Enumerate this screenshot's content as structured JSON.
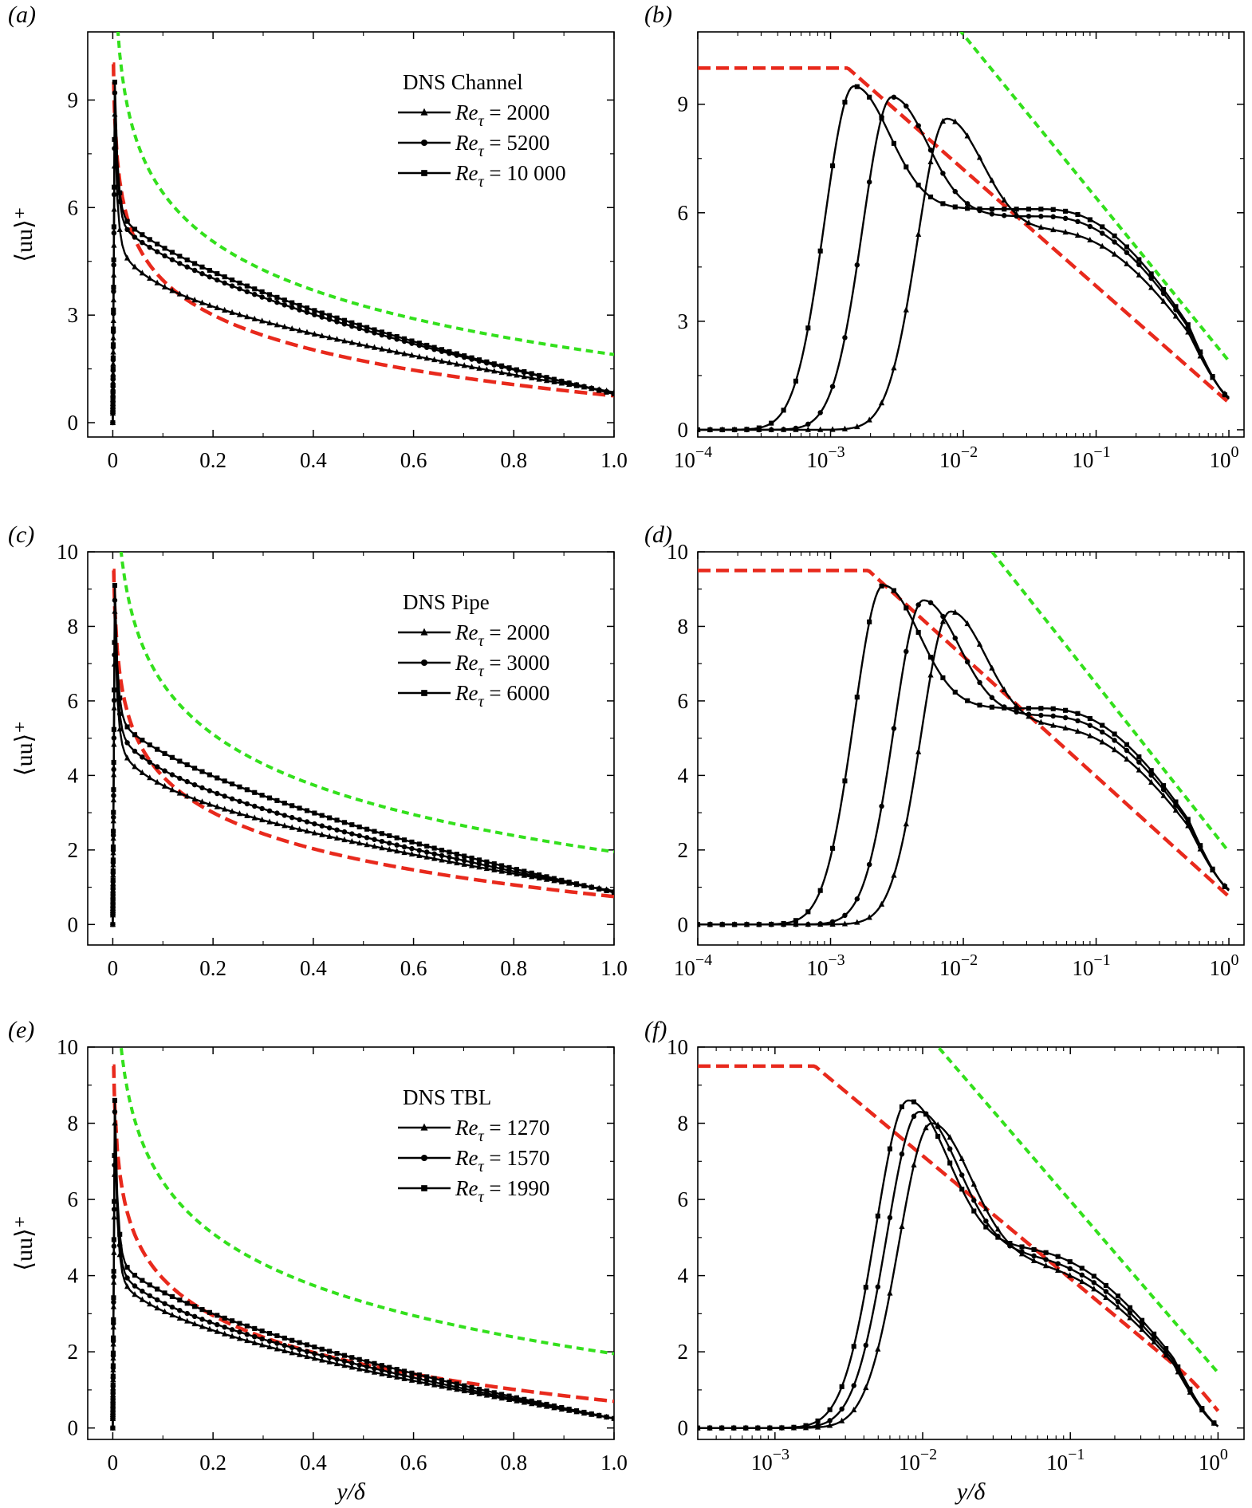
{
  "figure": {
    "xlabel": "y/δ",
    "ylabel": "⟨uu⟩⁺",
    "legend_prefix": "Re",
    "legend_sub": "τ",
    "colors": {
      "data": "#000000",
      "red_model": "#e8291c",
      "green_model": "#33e01c"
    }
  },
  "chart_data": [
    {
      "id": "a",
      "panel_label": "(a)",
      "type": "line",
      "xscale": "linear",
      "xlim": [
        -0.05,
        1.0
      ],
      "ylim": [
        -0.4,
        10.9
      ],
      "xticks": [
        {
          "v": 0,
          "label": "0"
        },
        {
          "v": 0.2,
          "label": "0.2"
        },
        {
          "v": 0.4,
          "label": "0.4"
        },
        {
          "v": 0.6,
          "label": "0.6"
        },
        {
          "v": 0.8,
          "label": "0.8"
        },
        {
          "v": 1.0,
          "label": "1.0"
        }
      ],
      "yticks": [
        {
          "v": 0,
          "label": "0"
        },
        {
          "v": 3,
          "label": "3"
        },
        {
          "v": 6,
          "label": "6"
        },
        {
          "v": 9,
          "label": "9"
        }
      ],
      "legend_title": "DNS Channel",
      "legend_position": "top-right",
      "series": [
        {
          "name": "Re_τ = 2000",
          "label": "= 2000",
          "marker": "triangle",
          "peak": 8.6,
          "plateau": 4.6,
          "outer": 0.85,
          "shoulder": 5.5
        },
        {
          "name": "Re_τ = 5200",
          "label": "= 5200",
          "marker": "circle",
          "peak": 9.2,
          "plateau": 5.9,
          "outer": 0.82,
          "shoulder": 5.9
        },
        {
          "name": "Re_τ = 10 000",
          "label": "= 10 000",
          "marker": "square",
          "peak": 9.5,
          "plateau": 6.2,
          "outer": 0.8,
          "shoulder": 6.1
        }
      ],
      "red_model": {
        "y0": 0.75,
        "slope": 1.4,
        "floor": 0.0,
        "cap": 10.0
      },
      "green_model": {
        "y0": 1.9,
        "slope": 1.96,
        "cap": 10.6
      }
    },
    {
      "id": "b",
      "panel_label": "(b)",
      "type": "line",
      "xscale": "log",
      "xlim": [
        0.0001,
        1.3
      ],
      "ylim": [
        -0.2,
        11.0
      ],
      "xticks": [
        {
          "v": 0.0001,
          "label": "10",
          "exp": "−4"
        },
        {
          "v": 0.001,
          "label": "10",
          "exp": "−3"
        },
        {
          "v": 0.01,
          "label": "10",
          "exp": "−2"
        },
        {
          "v": 0.1,
          "label": "10",
          "exp": "−1"
        },
        {
          "v": 1,
          "label": "10",
          "exp": "0"
        }
      ],
      "yticks": [
        {
          "v": 0,
          "label": "0"
        },
        {
          "v": 3,
          "label": "3"
        },
        {
          "v": 6,
          "label": "6"
        },
        {
          "v": 9,
          "label": "9"
        }
      ],
      "series": [
        {
          "name": "Re_τ = 2000",
          "marker": "triangle",
          "peakX": 0.0075,
          "peak": 8.6,
          "plateau": 4.6,
          "outer": 0.85,
          "shoulder": 5.5
        },
        {
          "name": "Re_τ = 5200",
          "marker": "circle",
          "peakX": 0.0029,
          "peak": 9.2,
          "plateau": 5.9,
          "outer": 0.82,
          "shoulder": 5.9
        },
        {
          "name": "Re_τ = 10 000",
          "marker": "square",
          "peakX": 0.0015,
          "peak": 9.5,
          "plateau": 6.2,
          "outer": 0.8,
          "shoulder": 6.1
        }
      ],
      "red_model": {
        "y0": 0.75,
        "slope": 1.4,
        "floor": 0.0,
        "cap": 10.0
      },
      "green_model": {
        "y0": 1.9,
        "slope": 1.96,
        "cap": 10.6
      }
    },
    {
      "id": "c",
      "panel_label": "(c)",
      "type": "line",
      "xscale": "linear",
      "xlim": [
        -0.05,
        1.0
      ],
      "ylim": [
        -0.55,
        10.0
      ],
      "xticks": [
        {
          "v": 0,
          "label": "0"
        },
        {
          "v": 0.2,
          "label": "0.2"
        },
        {
          "v": 0.4,
          "label": "0.4"
        },
        {
          "v": 0.6,
          "label": "0.6"
        },
        {
          "v": 0.8,
          "label": "0.8"
        },
        {
          "v": 1.0,
          "label": "1.0"
        }
      ],
      "yticks": [
        {
          "v": 0,
          "label": "0"
        },
        {
          "v": 2,
          "label": "2"
        },
        {
          "v": 4,
          "label": "4"
        },
        {
          "v": 6,
          "label": "6"
        },
        {
          "v": 8,
          "label": "8"
        },
        {
          "v": 10,
          "label": "10"
        }
      ],
      "legend_title": "DNS Pipe",
      "legend_position": "top-right",
      "series": [
        {
          "name": "Re_τ = 2000",
          "label": "= 2000",
          "marker": "triangle",
          "peak": 8.4,
          "plateau": 4.5,
          "outer": 0.9,
          "shoulder": 5.3
        },
        {
          "name": "Re_τ = 3000",
          "label": "= 3000",
          "marker": "circle",
          "peak": 8.7,
          "plateau": 5.1,
          "outer": 0.88,
          "shoulder": 5.6
        },
        {
          "name": "Re_τ = 6000",
          "label": "= 6000",
          "marker": "square",
          "peak": 9.1,
          "plateau": 5.8,
          "outer": 0.86,
          "shoulder": 5.8
        }
      ],
      "red_model": {
        "y0": 0.75,
        "slope": 1.4,
        "floor": 0.0,
        "cap": 9.5
      },
      "green_model": {
        "y0": 1.95,
        "slope": 1.96,
        "cap": 9.6
      }
    },
    {
      "id": "d",
      "panel_label": "(d)",
      "type": "line",
      "xscale": "log",
      "xlim": [
        0.0001,
        1.3
      ],
      "ylim": [
        -0.55,
        10.0
      ],
      "xticks": [
        {
          "v": 0.0001,
          "label": "10",
          "exp": "−4"
        },
        {
          "v": 0.001,
          "label": "10",
          "exp": "−3"
        },
        {
          "v": 0.01,
          "label": "10",
          "exp": "−2"
        },
        {
          "v": 0.1,
          "label": "10",
          "exp": "−1"
        },
        {
          "v": 1,
          "label": "10",
          "exp": "0"
        }
      ],
      "yticks": [
        {
          "v": 0,
          "label": "0"
        },
        {
          "v": 2,
          "label": "2"
        },
        {
          "v": 4,
          "label": "4"
        },
        {
          "v": 6,
          "label": "6"
        },
        {
          "v": 8,
          "label": "8"
        },
        {
          "v": 10,
          "label": "10"
        }
      ],
      "series": [
        {
          "name": "Re_τ = 2000",
          "marker": "triangle",
          "peakX": 0.008,
          "peak": 8.4,
          "plateau": 4.5,
          "outer": 0.9,
          "shoulder": 5.3
        },
        {
          "name": "Re_τ = 3000",
          "marker": "circle",
          "peakX": 0.005,
          "peak": 8.7,
          "plateau": 5.1,
          "outer": 0.88,
          "shoulder": 5.6
        },
        {
          "name": "Re_τ = 6000",
          "marker": "square",
          "peakX": 0.0025,
          "peak": 9.1,
          "plateau": 5.8,
          "outer": 0.86,
          "shoulder": 5.8
        }
      ],
      "red_model": {
        "y0": 0.75,
        "slope": 1.4,
        "floor": 0.0,
        "cap": 9.5
      },
      "green_model": {
        "y0": 1.95,
        "slope": 1.96,
        "cap": 9.6
      }
    },
    {
      "id": "e",
      "panel_label": "(e)",
      "type": "line",
      "xscale": "linear",
      "xlim": [
        -0.05,
        1.0
      ],
      "ylim": [
        -0.3,
        10.0
      ],
      "xticks": [
        {
          "v": 0,
          "label": "0"
        },
        {
          "v": 0.2,
          "label": "0.2"
        },
        {
          "v": 0.4,
          "label": "0.4"
        },
        {
          "v": 0.6,
          "label": "0.6"
        },
        {
          "v": 0.8,
          "label": "0.8"
        },
        {
          "v": 1.0,
          "label": "1.0"
        }
      ],
      "yticks": [
        {
          "v": 0,
          "label": "0"
        },
        {
          "v": 2,
          "label": "2"
        },
        {
          "v": 4,
          "label": "4"
        },
        {
          "v": 6,
          "label": "6"
        },
        {
          "v": 8,
          "label": "8"
        },
        {
          "v": 10,
          "label": "10"
        }
      ],
      "legend_title": "DNS TBL",
      "legend_position": "top-right",
      "series": [
        {
          "name": "Re_τ = 1270",
          "label": "= 1270",
          "marker": "triangle",
          "peak": 8.0,
          "plateau": 3.9,
          "outer": 0.25,
          "shoulder": 4.3
        },
        {
          "name": "Re_τ = 1570",
          "label": "= 1570",
          "marker": "circle",
          "peak": 8.3,
          "plateau": 4.2,
          "outer": 0.25,
          "shoulder": 4.5
        },
        {
          "name": "Re_τ = 1990",
          "label": "= 1990",
          "marker": "square",
          "peak": 8.6,
          "plateau": 4.6,
          "outer": 0.25,
          "shoulder": 4.7
        }
      ],
      "red_model": {
        "y0": 0.7,
        "slope": 1.4,
        "floor": 0.0,
        "cap": 9.5
      },
      "green_model": {
        "y0": 1.95,
        "slope": 1.96,
        "cap": 9.8
      }
    },
    {
      "id": "f",
      "panel_label": "(f)",
      "type": "line",
      "xscale": "log",
      "xlim": [
        0.0003,
        1.5
      ],
      "ylim": [
        -0.3,
        10.0
      ],
      "xticks": [
        {
          "v": 0.001,
          "label": "10",
          "exp": "−3"
        },
        {
          "v": 0.01,
          "label": "10",
          "exp": "−2"
        },
        {
          "v": 0.1,
          "label": "10",
          "exp": "−1"
        },
        {
          "v": 1,
          "label": "10",
          "exp": "0"
        }
      ],
      "yticks": [
        {
          "v": 0,
          "label": "0"
        },
        {
          "v": 2,
          "label": "2"
        },
        {
          "v": 4,
          "label": "4"
        },
        {
          "v": 6,
          "label": "6"
        },
        {
          "v": 8,
          "label": "8"
        },
        {
          "v": 10,
          "label": "10"
        }
      ],
      "series": [
        {
          "name": "Re_τ = 1270",
          "marker": "triangle",
          "peakX": 0.0115,
          "peak": 8.0,
          "plateau": 3.9,
          "outer": 0.0,
          "shoulder": 4.3
        },
        {
          "name": "Re_τ = 1570",
          "marker": "circle",
          "peakX": 0.0095,
          "peak": 8.3,
          "plateau": 4.2,
          "outer": 0.0,
          "shoulder": 4.5
        },
        {
          "name": "Re_τ = 1990",
          "marker": "square",
          "peakX": 0.008,
          "peak": 8.6,
          "plateau": 4.6,
          "outer": 0.0,
          "shoulder": 4.7
        }
      ],
      "red_model": {
        "y0": 0.0,
        "slope": 1.4,
        "floor": 0.0,
        "cap": 9.5,
        "tbl": true
      },
      "green_model": {
        "y0": 1.45,
        "slope": 1.96,
        "cap": 10.6
      }
    }
  ]
}
